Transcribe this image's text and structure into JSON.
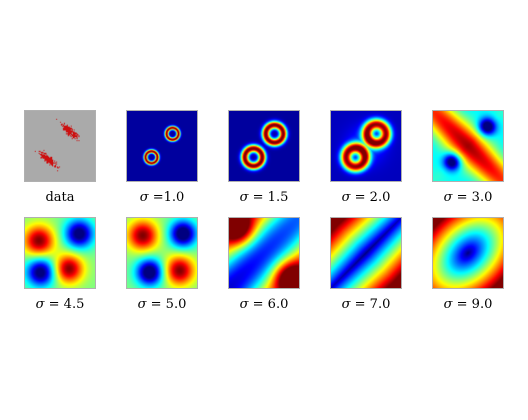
{
  "figure": {
    "panels": [
      {
        "id": "data",
        "caption_symbol": "",
        "caption_text": "data",
        "kind": "data",
        "sigma": null
      },
      {
        "id": "s1",
        "caption_symbol": "σ",
        "caption_text": " =1.0",
        "kind": "map",
        "sigma": 1.0
      },
      {
        "id": "s2",
        "caption_symbol": "σ",
        "caption_text": " = 1.5",
        "kind": "map",
        "sigma": 1.5
      },
      {
        "id": "s3",
        "caption_symbol": "σ",
        "caption_text": " = 2.0",
        "kind": "map",
        "sigma": 2.0
      },
      {
        "id": "s4",
        "caption_symbol": "σ",
        "caption_text": " = 3.0",
        "kind": "map",
        "sigma": 3.0
      },
      {
        "id": "s5",
        "caption_symbol": "σ",
        "caption_text": " = 4.5",
        "kind": "map",
        "sigma": 4.5
      },
      {
        "id": "s6",
        "caption_symbol": "σ",
        "caption_text": " = 5.0",
        "kind": "map",
        "sigma": 5.0
      },
      {
        "id": "s7",
        "caption_symbol": "σ",
        "caption_text": " = 6.0",
        "kind": "map",
        "sigma": 6.0
      },
      {
        "id": "s8",
        "caption_symbol": "σ",
        "caption_text": " = 7.0",
        "kind": "map",
        "sigma": 7.0
      },
      {
        "id": "s9",
        "caption_symbol": "σ",
        "caption_text": " = 9.0",
        "kind": "map",
        "sigma": 9.0
      }
    ],
    "colors": {
      "data_background": "#aaaaaa",
      "data_points": "#cc1010",
      "colormap": "jet"
    }
  }
}
